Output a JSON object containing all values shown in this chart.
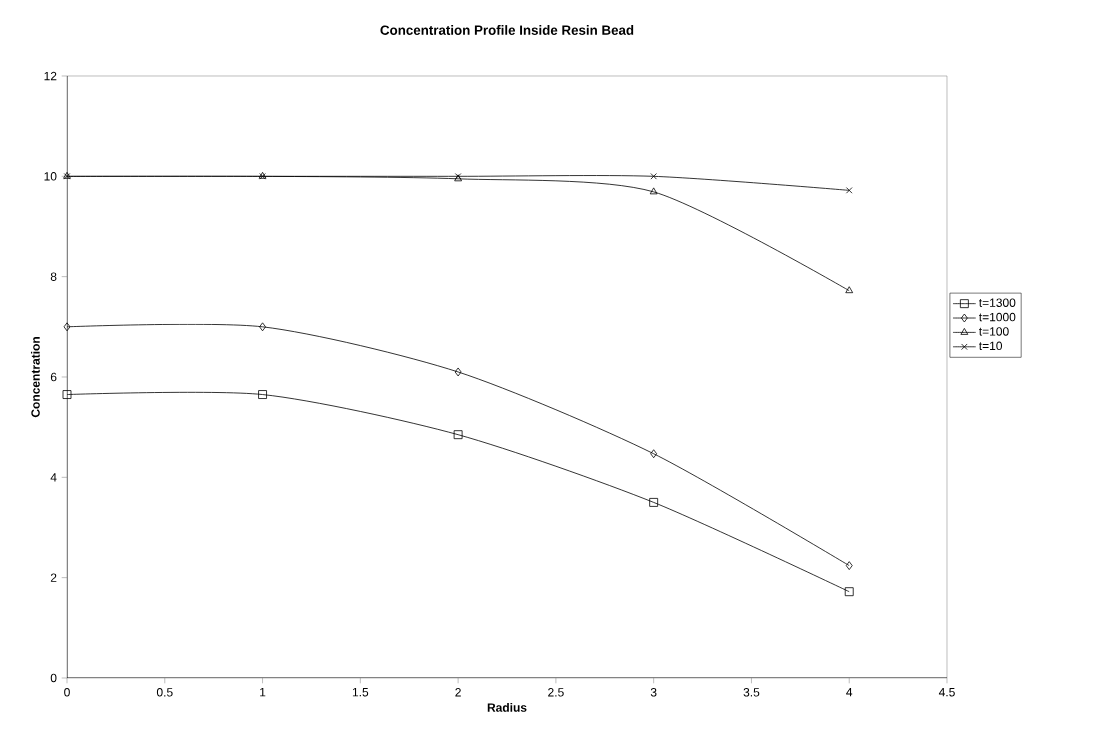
{
  "chart_data": {
    "type": "line",
    "title": "Concentration Profile Inside Resin Bead",
    "xlabel": "Radius",
    "ylabel": "Concentration",
    "x": [
      0,
      1,
      2,
      3,
      4
    ],
    "series": [
      {
        "name": "t=1300",
        "color": "#000000",
        "marker": "square",
        "values": [
          5.65,
          5.65,
          4.85,
          3.5,
          1.72
        ]
      },
      {
        "name": "t=1000",
        "color": "#000000",
        "marker": "diamond",
        "values": [
          7.0,
          7.0,
          6.1,
          4.47,
          2.24
        ]
      },
      {
        "name": "t=100",
        "color": "#000000",
        "marker": "triangle",
        "values": [
          10.0,
          10.0,
          9.95,
          9.69,
          7.72
        ]
      },
      {
        "name": "t=10",
        "color": "#000000",
        "marker": "cross",
        "values": [
          10.0,
          10.0,
          10.0,
          10.0,
          9.72
        ]
      }
    ],
    "xlim": [
      0,
      4.5
    ],
    "xticks": [
      0,
      0.5,
      1,
      1.5,
      2,
      2.5,
      3,
      3.5,
      4,
      4.5
    ],
    "ylim": [
      0,
      12
    ],
    "yticks": [
      0,
      2,
      4,
      6,
      8,
      10,
      12
    ],
    "grid": false,
    "legend": "right",
    "line_style": "solid"
  }
}
